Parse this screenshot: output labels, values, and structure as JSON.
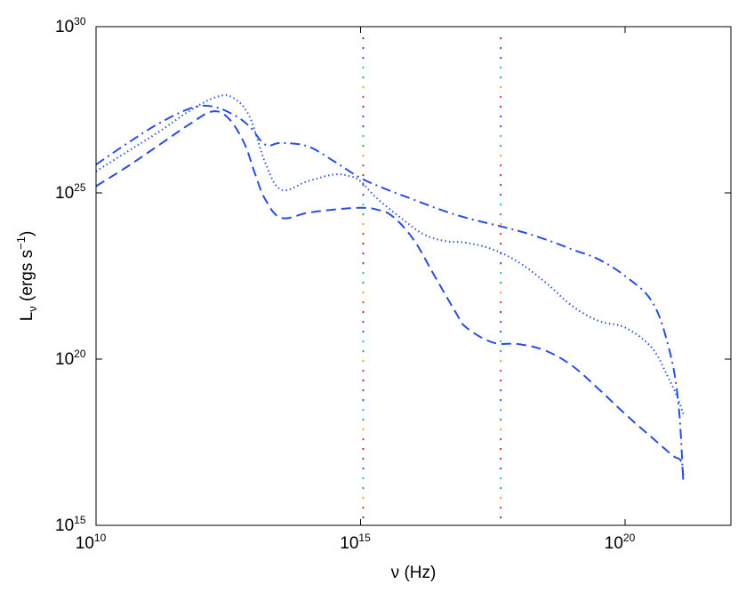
{
  "chart_data": {
    "type": "line",
    "title": "",
    "xlabel": "ν (Hz)",
    "ylabel": {
      "main": "L",
      "subscript": "ν",
      "units_before": " (ergs s",
      "units_exp": "−1",
      "units_after": ")"
    },
    "x_scale": "log",
    "y_scale": "log",
    "xlim": [
      10000000000.0,
      1e+22
    ],
    "ylim": [
      1000000000000000.0,
      1e+30
    ],
    "grid": false,
    "legend": "none",
    "x_ticks": [
      {
        "value": 10000000000.0,
        "base": "10",
        "exp": "10"
      },
      {
        "value": 1000000000000000.0,
        "base": "10",
        "exp": "15"
      },
      {
        "value": 1e+20,
        "base": "10",
        "exp": "20"
      }
    ],
    "y_ticks": [
      {
        "value": 1000000000000000.0,
        "base": "10",
        "exp": "15"
      },
      {
        "value": 1e+20,
        "base": "10",
        "exp": "20"
      },
      {
        "value": 1e+25,
        "base": "10",
        "exp": "25"
      },
      {
        "value": 1e+30,
        "base": "10",
        "exp": "30"
      }
    ],
    "series": [
      {
        "style": "dashed",
        "color": "#2a4de0",
        "log_x": [
          10.0,
          10.6,
          11.2,
          11.8,
          12.2,
          12.5,
          12.8,
          13.0,
          13.2,
          13.5,
          14.0,
          14.5,
          15.0,
          15.3,
          15.6,
          16.0,
          16.4,
          16.8,
          17.0,
          17.5,
          18.0,
          18.5,
          19.0,
          19.5,
          20.0,
          20.5,
          20.9,
          21.05,
          21.1
        ],
        "log_y": [
          25.2,
          25.8,
          26.45,
          27.1,
          27.45,
          27.25,
          26.5,
          25.6,
          24.8,
          24.25,
          24.4,
          24.5,
          24.55,
          24.5,
          24.3,
          23.6,
          22.5,
          21.4,
          20.95,
          20.5,
          20.45,
          20.25,
          19.8,
          19.1,
          18.35,
          17.65,
          17.1,
          16.95,
          16.5
        ]
      },
      {
        "style": "dotted",
        "color": "#2a4de0",
        "log_x": [
          10.0,
          10.6,
          11.2,
          11.8,
          12.3,
          12.6,
          12.9,
          13.2,
          13.5,
          14.0,
          14.5,
          14.8,
          15.0,
          15.3,
          15.8,
          16.2,
          16.6,
          17.0,
          17.5,
          18.0,
          18.5,
          19.0,
          19.5,
          20.0,
          20.5,
          20.8,
          21.0,
          21.1
        ],
        "log_y": [
          25.65,
          26.25,
          26.85,
          27.5,
          27.9,
          27.85,
          27.3,
          25.9,
          25.1,
          25.35,
          25.55,
          25.5,
          25.35,
          24.85,
          24.2,
          23.75,
          23.55,
          23.5,
          23.3,
          22.9,
          22.3,
          21.6,
          21.15,
          20.95,
          20.35,
          19.5,
          18.8,
          18.35
        ]
      },
      {
        "style": "dashdot",
        "color": "#2a4de0",
        "log_x": [
          10.0,
          10.6,
          11.2,
          11.8,
          12.2,
          12.6,
          12.9,
          13.2,
          13.5,
          14.0,
          14.5,
          15.0,
          15.5,
          16.0,
          16.5,
          17.0,
          17.5,
          18.0,
          18.5,
          19.0,
          19.5,
          20.0,
          20.5,
          20.8,
          21.0,
          21.1
        ],
        "log_y": [
          25.85,
          26.5,
          27.1,
          27.55,
          27.6,
          27.35,
          27.0,
          26.45,
          26.5,
          26.4,
          25.95,
          25.45,
          25.1,
          24.8,
          24.5,
          24.25,
          24.05,
          23.85,
          23.6,
          23.3,
          23.0,
          22.5,
          21.75,
          20.5,
          18.8,
          16.3
        ]
      }
    ],
    "vertical_markers": [
      {
        "log_x": 15.05,
        "style": "multicolor-dotted"
      },
      {
        "log_x": 17.65,
        "style": "multicolor-dotted"
      }
    ],
    "marker_colors": [
      "#b22222",
      "#7b2cbf",
      "#2a4de0",
      "#20c0c0",
      "#28a745",
      "#f0a020",
      "#e03030"
    ]
  }
}
